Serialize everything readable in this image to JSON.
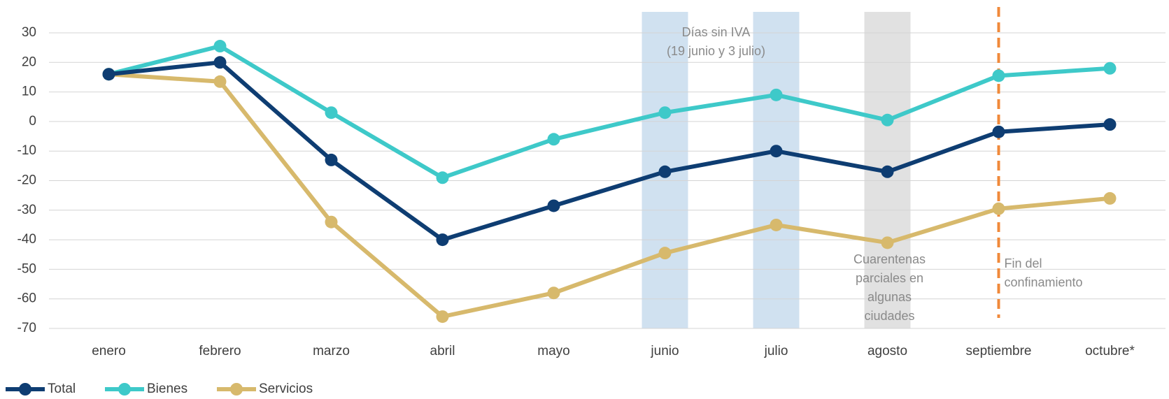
{
  "chart_data": {
    "type": "line",
    "categories": [
      "enero",
      "febrero",
      "marzo",
      "abril",
      "mayo",
      "junio",
      "julio",
      "agosto",
      "septiembre",
      "octubre*"
    ],
    "series": [
      {
        "name": "Total",
        "color": "#0e3d72",
        "values": [
          16,
          20,
          -13,
          -40,
          -28.5,
          -17,
          -10,
          -17,
          -3.5,
          -1
        ]
      },
      {
        "name": "Bienes",
        "color": "#3ec9c9",
        "values": [
          16,
          25.5,
          3,
          -19,
          -6,
          3,
          9,
          0.5,
          15.5,
          18
        ]
      },
      {
        "name": "Servicios",
        "color": "#d7b96c",
        "values": [
          16,
          13.5,
          -34,
          -66,
          -58,
          -44.5,
          -35,
          -41,
          -29.5,
          -26
        ]
      }
    ],
    "ylim": [
      -70,
      30
    ],
    "yticks": [
      30,
      20,
      10,
      0,
      -10,
      -20,
      -30,
      -40,
      -50,
      -60,
      -70
    ],
    "grid": true,
    "annotations": [
      {
        "lines": [
          "Días sin IVA",
          "(19 junio y 3 julio)"
        ]
      },
      {
        "lines": [
          "Cuarentenas",
          "parciales en",
          "algunas",
          "ciudades"
        ]
      },
      {
        "lines": [
          "Fin del",
          "confinamiento"
        ]
      }
    ]
  }
}
